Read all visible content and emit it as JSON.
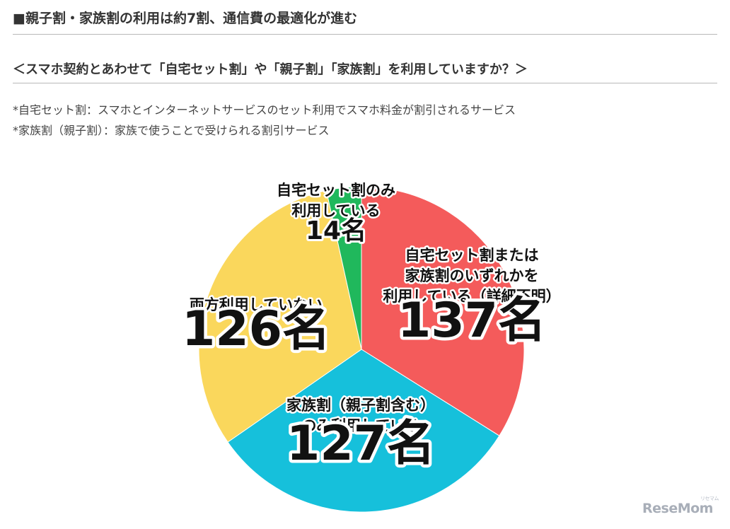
{
  "header": {
    "title": "■親子割・家族割の利用は約7割、通信費の最適化が進む",
    "question": "＜スマホ契約とあわせて「自宅セット割」や「親子割」「家族割」を利用していますか？＞",
    "notes": [
      "*自宅セット割：スマホとインターネットサービスのセット利用でスマホ料金が割引されるサービス",
      "*家族割（親子割）：家族で使うことで受けられる割引サービス"
    ]
  },
  "chart_data": {
    "type": "pie",
    "start_angle_deg": 0,
    "direction": "clockwise",
    "slices": [
      {
        "label_lines": [
          "自宅セット割または",
          "家族割のいずれかを",
          "利用している（詳細不明）"
        ],
        "value": 137,
        "value_label": "137名",
        "color": "#f45b5b"
      },
      {
        "label_lines": [
          "家族割（親子割含む）",
          "のみ利用している"
        ],
        "value": 127,
        "value_label": "127名",
        "color": "#16c0db"
      },
      {
        "label_lines": [
          "両方利用していない"
        ],
        "value": 126,
        "value_label": "126名",
        "color": "#fad75c"
      },
      {
        "label_lines": [
          "自宅セット割のみ",
          "利用している"
        ],
        "value": 14,
        "value_label": "14名",
        "color": "#20b85c"
      }
    ]
  },
  "watermark": {
    "text": "ReseMom",
    "kana": "リセマム"
  }
}
